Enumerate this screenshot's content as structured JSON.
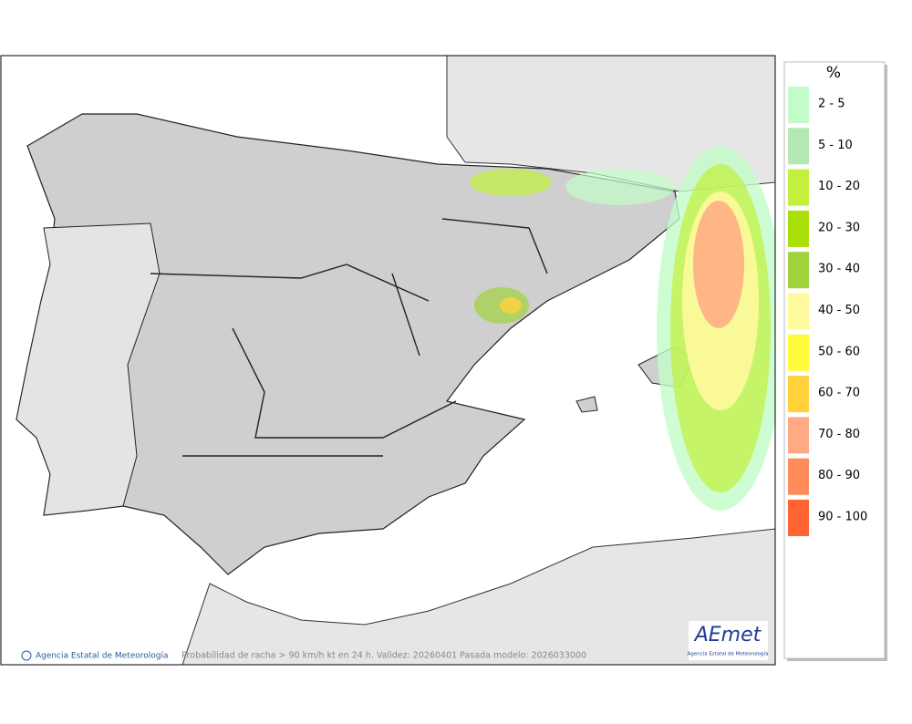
{
  "legend": {
    "title": "%",
    "items": [
      {
        "label": "2 - 5",
        "color": "#c2fcc8"
      },
      {
        "label": "5 - 10",
        "color": "#b4e8b4"
      },
      {
        "label": "10 - 20",
        "color": "#c2f03c"
      },
      {
        "label": "20 - 30",
        "color": "#aae00a"
      },
      {
        "label": "30 - 40",
        "color": "#a0d23c"
      },
      {
        "label": "40 - 50",
        "color": "#fffa9c"
      },
      {
        "label": "50 - 60",
        "color": "#fffa3c"
      },
      {
        "label": "60 - 70",
        "color": "#ffd23c"
      },
      {
        "label": "70 - 80",
        "color": "#ffaa82"
      },
      {
        "label": "80 - 90",
        "color": "#ff8c5a"
      },
      {
        "label": "90 - 100",
        "color": "#ff6432"
      }
    ]
  },
  "footer": {
    "agency": "Agencia Estatal de Meteorología",
    "caption": "Probabilidad de racha > 90 km/h kt en 24 h. Validez: 20260401 Pasada modelo: 2026033000"
  },
  "logo": {
    "name": "AEmet",
    "subtitle": "Agencia Estatal de Meteorología"
  }
}
